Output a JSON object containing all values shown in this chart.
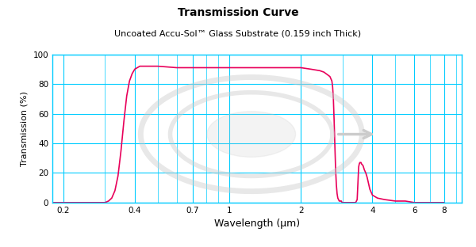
{
  "title": "Transmission Curve",
  "subtitle": "Uncoated Accu-Sol™ Glass Substrate (0.159 inch Thick)",
  "xlabel": "Wavelength (μm)",
  "ylabel": "Transmission (%)",
  "xlim": [
    0.18,
    9.5
  ],
  "ylim": [
    0,
    100
  ],
  "xticks": [
    0.2,
    0.4,
    0.7,
    1,
    2,
    4,
    6,
    8
  ],
  "yticks": [
    0,
    20,
    40,
    60,
    80,
    100
  ],
  "line_color": "#e8005a",
  "grid_color": "#00ccff",
  "bg_color": "#ffffff",
  "plot_bg_color": "#ffffff",
  "title_fontsize": 10,
  "subtitle_fontsize": 8,
  "xlabel_fontsize": 9,
  "ylabel_fontsize": 8,
  "tick_labelsize": 7.5,
  "curve_x": [
    0.18,
    0.28,
    0.3,
    0.31,
    0.32,
    0.33,
    0.34,
    0.35,
    0.36,
    0.37,
    0.38,
    0.39,
    0.4,
    0.41,
    0.42,
    0.44,
    0.46,
    0.5,
    0.6,
    0.7,
    1.0,
    1.5,
    2.0,
    2.2,
    2.4,
    2.5,
    2.6,
    2.65,
    2.7,
    2.72,
    2.74,
    2.76,
    2.78,
    2.8,
    2.82,
    2.84,
    2.86,
    2.88,
    2.9,
    2.92,
    2.94,
    2.96,
    2.98,
    3.0,
    3.3,
    3.4,
    3.45,
    3.5,
    3.52,
    3.54,
    3.56,
    3.58,
    3.6,
    3.65,
    3.7,
    3.75,
    3.8,
    3.85,
    3.9,
    4.0,
    4.2,
    4.5,
    5.0,
    5.5,
    6.0,
    7.0,
    8.0
  ],
  "curve_y": [
    0,
    0,
    0,
    1,
    3,
    8,
    18,
    35,
    55,
    72,
    82,
    87,
    90,
    91,
    92,
    92,
    92,
    92,
    91,
    91,
    91,
    91,
    91,
    90,
    89,
    88,
    86,
    85,
    82,
    78,
    70,
    55,
    38,
    22,
    12,
    6,
    3,
    2,
    1,
    1,
    1,
    1,
    0,
    0,
    0,
    0,
    2,
    24,
    26,
    27,
    27,
    27,
    26,
    25,
    22,
    20,
    17,
    13,
    9,
    5,
    3,
    2,
    1,
    1,
    0,
    0,
    0
  ]
}
